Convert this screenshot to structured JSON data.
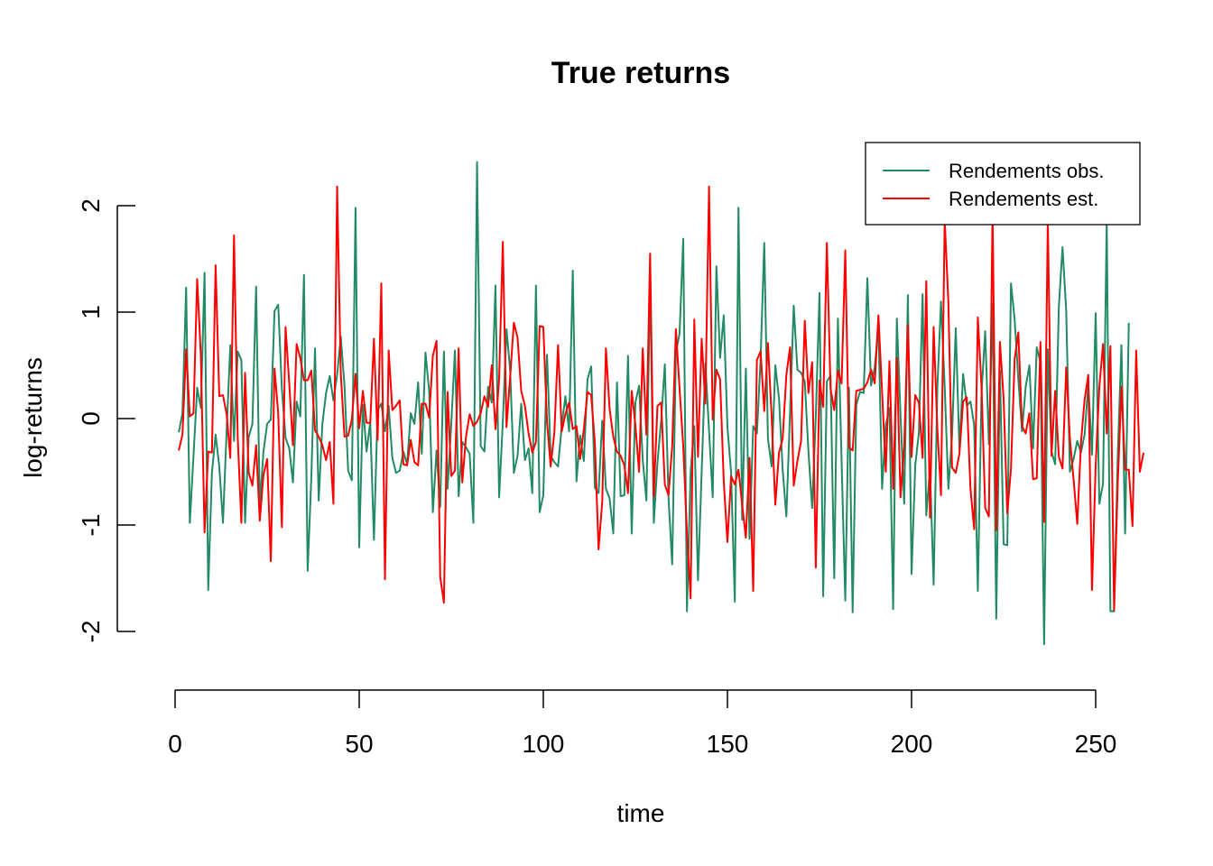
{
  "chart_data": {
    "type": "line",
    "title": "True returns",
    "xlabel": "time",
    "ylabel": "log-returns",
    "xlim": [
      1,
      252
    ],
    "ylim": [
      -2.37,
      2.42
    ],
    "x_ticks": [
      0,
      50,
      100,
      150,
      200,
      250
    ],
    "y_ticks": [
      -2,
      -1,
      0,
      1,
      2
    ],
    "x_tick_labels": [
      "0",
      "50",
      "100",
      "150",
      "200",
      "250"
    ],
    "y_tick_labels": [
      "-2",
      "-1",
      "0",
      "1",
      "2"
    ],
    "grid": false,
    "legend": {
      "position": "top-right",
      "entries": [
        "Rendements obs.",
        "Rendements est."
      ]
    },
    "x_start": 1,
    "series": [
      {
        "name": "Rendements obs.",
        "color": "#228b63",
        "values": [
          -0.13,
          0.05,
          1.23,
          -0.98,
          -0.35,
          0.29,
          0.1,
          1.37,
          -1.61,
          -0.51,
          -0.15,
          -0.45,
          -0.98,
          -0.11,
          0.69,
          -0.21,
          0.63,
          0.55,
          -0.98,
          -0.17,
          -0.05,
          1.24,
          -0.82,
          -0.31,
          -0.05,
          -0.01,
          1.01,
          1.07,
          0.28,
          -0.18,
          -0.28,
          -0.6,
          0.16,
          0.02,
          1.35,
          -1.43,
          -0.55,
          0.66,
          -0.77,
          -0.05,
          0.24,
          0.4,
          0.17,
          0.41,
          0.77,
          0.31,
          -0.49,
          -0.58,
          1.98,
          -1.21,
          0.13,
          -0.31,
          -0.03,
          -1.14,
          0.08,
          0.14,
          -0.12,
          0.12,
          -0.37,
          -0.51,
          -0.49,
          -0.31,
          -0.43,
          0.05,
          -0.05,
          0.34,
          -0.33,
          0.62,
          0.26,
          -0.88,
          -0.3,
          -0.83,
          0.63,
          -0.66,
          -0.05,
          0.64,
          -0.73,
          -0.22,
          -0.27,
          -0.33,
          -0.98,
          2.41,
          -0.26,
          -0.31,
          0.3,
          0.15,
          1.25,
          -0.74,
          -0.03,
          0.84,
          0.45,
          -0.51,
          -0.35,
          0.14,
          -0.39,
          -0.28,
          -0.7,
          1.25,
          -0.88,
          -0.72,
          0.6,
          -0.35,
          -0.41,
          -0.45,
          -0.07,
          0.21,
          -0.12,
          1.39,
          -0.59,
          -0.16,
          -0.4,
          0.37,
          0.49,
          -0.65,
          -0.7,
          -0.02,
          -0.66,
          -0.75,
          -1.08,
          0.34,
          -0.73,
          -0.72,
          0.59,
          -1.08,
          0.15,
          0.31,
          -0.39,
          -0.77,
          1.35,
          -0.98,
          -0.41,
          -0.02,
          0.51,
          -0.75,
          -1.37,
          0.62,
          0.8,
          1.69,
          -1.81,
          -0.5,
          -0.07,
          -1.52,
          -0.5,
          0.52,
          -0.11,
          -0.74,
          1.43,
          0.57,
          0.97,
          -0.08,
          -0.51,
          -1.72,
          1.98,
          -0.95,
          0.47,
          -1.13,
          -0.07,
          -0.14,
          0.55,
          1.65,
          -0.19,
          -0.45,
          0.5,
          0.19,
          -0.48,
          -0.92,
          0.06,
          1.06,
          0.46,
          0.43,
          0.35,
          -0.31,
          -0.84,
          0.02,
          1.18,
          -1.67,
          0.35,
          0.4,
          -1.5,
          0.94,
          -0.4,
          -1.71,
          0.29,
          -1.82,
          0.13,
          0.25,
          0.24,
          1.32,
          0.31,
          0.48,
          0.88,
          -0.66,
          -0.06,
          0.1,
          -1.79,
          0.94,
          0.04,
          -0.8,
          1.16,
          -1.46,
          -0.44,
          -0.13,
          1.17,
          -0.91,
          -0.47,
          -1.56,
          0.29,
          1.1,
          0.3,
          -0.66,
          -0.16,
          0.85,
          -0.29,
          0.42,
          0.12,
          0.16,
          -0.06,
          -1.62,
          0.24,
          0.82,
          -0.24,
          1.08,
          -1.88,
          0.45,
          -1.18,
          -1.19,
          1.27,
          0.93,
          0.37,
          -0.12,
          0.3,
          0.5,
          -0.28,
          0.67,
          0.53,
          -2.12,
          0.65,
          -0.31,
          -0.43,
          1.05,
          1.61,
          1.01,
          -0.5,
          -0.38,
          -0.21,
          -0.32,
          -0.15,
          0.33,
          -0.34,
          0.99,
          -0.8,
          -0.61,
          1.85,
          -1.81,
          -1.81,
          -0.34,
          0.69,
          -1.08,
          0.9
        ]
      },
      {
        "name": "Rendements est.",
        "color": "#ff0000",
        "values": [
          -0.3,
          -0.15,
          0.65,
          0.02,
          0.05,
          1.31,
          0.59,
          -1.07,
          -0.31,
          -0.32,
          1.44,
          0.21,
          0.22,
          0.04,
          -0.37,
          1.72,
          -0.17,
          -0.98,
          0.43,
          -0.51,
          -0.63,
          -0.25,
          -0.96,
          -0.53,
          -0.38,
          -1.34,
          0.47,
          0.05,
          -1.02,
          0.86,
          0.33,
          -0.25,
          0.7,
          0.57,
          0.36,
          0.36,
          0.45,
          -0.11,
          -0.17,
          -0.25,
          -0.39,
          -0.22,
          -0.8,
          2.18,
          0.42,
          -0.17,
          -0.16,
          -0.01,
          0.42,
          -0.09,
          0.26,
          -0.04,
          -0.04,
          0.75,
          -0.2,
          1.27,
          -1.51,
          0.64,
          0.08,
          0.12,
          0.17,
          -0.43,
          -0.44,
          -0.2,
          -0.41,
          -0.44,
          0.14,
          0.14,
          0.01,
          0.59,
          0.73,
          -1.49,
          -1.73,
          0.25,
          -0.54,
          -0.49,
          0.66,
          -0.6,
          -0.17,
          0.04,
          -0.07,
          -0.03,
          0.05,
          0.21,
          0.11,
          0.5,
          -0.1,
          0.37,
          1.66,
          -0.08,
          0.4,
          0.9,
          0.76,
          0.26,
          0.12,
          -0.14,
          -0.32,
          -0.22,
          0.87,
          0.86,
          -0.03,
          -0.45,
          -0.13,
          0.69,
          -0.12,
          0.04,
          0.15,
          -0.1,
          -0.07,
          -0.38,
          -0.1,
          0.25,
          0.22,
          -0.23,
          -1.23,
          -0.78,
          0.66,
          0.09,
          -0.17,
          -0.31,
          -0.35,
          -0.44,
          -0.7,
          0.26,
          -0.06,
          -0.5,
          0.66,
          -0.15,
          1.55,
          -0.73,
          0.12,
          0.15,
          -0.62,
          -0.72,
          -0.26,
          0.84,
          0.28,
          -0.26,
          -1.07,
          -1.69,
          0.93,
          -0.36,
          0.75,
          0.14,
          2.18,
          -0.01,
          0.46,
          0.37,
          -0.59,
          -1.16,
          -0.54,
          -0.62,
          -0.48,
          -0.81,
          -1.12,
          -0.37,
          -1.62,
          0.55,
          0.63,
          0.07,
          0.71,
          0.02,
          -0.81,
          -0.32,
          -0.19,
          0.41,
          0.67,
          -0.63,
          -0.4,
          -0.21,
          0.92,
          0.24,
          0.53,
          -1.4,
          0.36,
          0.11,
          1.65,
          0.28,
          0.08,
          0.45,
          0.33,
          1.58,
          -0.27,
          -0.3,
          0.26,
          0.27,
          0.28,
          0.34,
          0.46,
          0.33,
          0.97,
          0.25,
          -0.5,
          0.54,
          -0.66,
          0.57,
          -0.74,
          -0.26,
          0.88,
          -0.36,
          0.22,
          0.15,
          -0.37,
          1.29,
          -0.93,
          0.86,
          -0.09,
          -0.72,
          1.87,
          1.09,
          -0.46,
          -0.51,
          -0.33,
          0.16,
          0.2,
          -0.66,
          -1.04,
          0.95,
          0.3,
          -0.84,
          -0.92,
          1.96,
          -1.05,
          0.72,
          0.19,
          -0.89,
          -0.47,
          0.56,
          0.81,
          -0.07,
          -0.14,
          0.05,
          -0.57,
          -0.56,
          0.72,
          -0.97,
          1.86,
          -0.35,
          0.26,
          -0.36,
          -0.47,
          0.48,
          -0.19,
          -0.57,
          -0.99,
          -0.23,
          0.18,
          0.41,
          -1.61,
          -0.44,
          0.3,
          0.7,
          -0.14,
          0.68,
          -1.8,
          -0.61,
          0.3,
          -0.48,
          -0.48,
          -1.01,
          0.64,
          -0.5,
          -0.32
        ]
      }
    ]
  }
}
